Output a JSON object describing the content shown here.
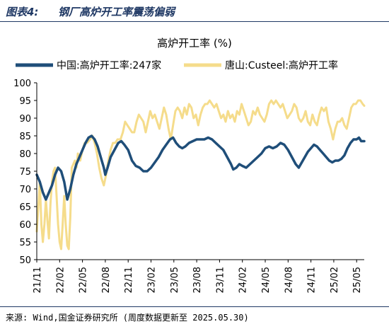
{
  "header": {
    "label": "图表4:",
    "title": "钢厂高炉开工率震荡偏弱"
  },
  "footer": {
    "source": "来源: Wind,国金证券研究所 (周度数据更新至 2025.05.30)"
  },
  "chart_data": {
    "type": "line",
    "title": "高炉开工率 (%)",
    "xlabel": "",
    "ylabel": "",
    "ylim": [
      50,
      100
    ],
    "yticks": [
      50,
      55,
      60,
      65,
      70,
      75,
      80,
      85,
      90,
      95,
      100
    ],
    "xlim": [
      0,
      43
    ],
    "xticks": [
      {
        "label": "21/11",
        "x": 0
      },
      {
        "label": "22/02",
        "x": 3
      },
      {
        "label": "22/05",
        "x": 6
      },
      {
        "label": "22/08",
        "x": 9
      },
      {
        "label": "22/11",
        "x": 12
      },
      {
        "label": "23/02",
        "x": 15
      },
      {
        "label": "23/05",
        "x": 18
      },
      {
        "label": "23/08",
        "x": 21
      },
      {
        "label": "23/11",
        "x": 24
      },
      {
        "label": "24/02",
        "x": 27
      },
      {
        "label": "24/05",
        "x": 30
      },
      {
        "label": "24/08",
        "x": 33
      },
      {
        "label": "24/11",
        "x": 36
      },
      {
        "label": "25/02",
        "x": 39
      },
      {
        "label": "25/05",
        "x": 42
      }
    ],
    "grid": false,
    "legend": "top",
    "series": [
      {
        "name": "中国:高炉开工率:247家",
        "color": "#1f4e79",
        "points": [
          [
            0,
            74
          ],
          [
            0.4,
            72
          ],
          [
            0.8,
            69
          ],
          [
            1.2,
            67
          ],
          [
            1.6,
            69
          ],
          [
            2.0,
            71
          ],
          [
            2.4,
            74
          ],
          [
            2.8,
            76
          ],
          [
            3.2,
            75
          ],
          [
            3.6,
            72
          ],
          [
            4.0,
            67
          ],
          [
            4.4,
            70
          ],
          [
            4.8,
            74
          ],
          [
            5.2,
            77
          ],
          [
            5.6,
            79
          ],
          [
            6.0,
            81
          ],
          [
            6.4,
            83
          ],
          [
            6.8,
            84.5
          ],
          [
            7.2,
            85
          ],
          [
            7.6,
            84
          ],
          [
            8.0,
            82
          ],
          [
            8.4,
            79
          ],
          [
            8.8,
            76
          ],
          [
            9.0,
            74
          ],
          [
            9.3,
            76
          ],
          [
            9.7,
            79
          ],
          [
            10.2,
            81
          ],
          [
            10.7,
            83
          ],
          [
            11.1,
            83.5
          ],
          [
            11.5,
            82.5
          ],
          [
            12.0,
            81
          ],
          [
            12.5,
            78
          ],
          [
            13.0,
            76.5
          ],
          [
            13.5,
            76
          ],
          [
            14.0,
            75
          ],
          [
            14.5,
            75
          ],
          [
            15.0,
            76
          ],
          [
            15.5,
            77.5
          ],
          [
            16.0,
            79
          ],
          [
            16.5,
            81
          ],
          [
            17.0,
            82.5
          ],
          [
            17.5,
            84
          ],
          [
            17.9,
            84.5
          ],
          [
            18.3,
            83
          ],
          [
            18.7,
            82
          ],
          [
            19.1,
            81.5
          ],
          [
            19.5,
            82
          ],
          [
            20.0,
            83
          ],
          [
            20.5,
            83.5
          ],
          [
            21.0,
            84
          ],
          [
            21.5,
            84
          ],
          [
            22.0,
            84
          ],
          [
            22.5,
            84.5
          ],
          [
            23.0,
            84
          ],
          [
            23.5,
            83
          ],
          [
            24.0,
            82
          ],
          [
            24.5,
            81
          ],
          [
            25.0,
            79
          ],
          [
            25.5,
            77
          ],
          [
            25.8,
            75.5
          ],
          [
            26.2,
            76
          ],
          [
            26.6,
            77
          ],
          [
            27.0,
            76.5
          ],
          [
            27.5,
            76
          ],
          [
            28.0,
            77
          ],
          [
            28.5,
            78
          ],
          [
            29.0,
            79
          ],
          [
            29.5,
            80
          ],
          [
            30.0,
            81.5
          ],
          [
            30.5,
            82
          ],
          [
            31.0,
            81.5
          ],
          [
            31.5,
            82
          ],
          [
            32.0,
            83
          ],
          [
            32.5,
            82.5
          ],
          [
            33.0,
            81
          ],
          [
            33.5,
            79
          ],
          [
            34.0,
            77
          ],
          [
            34.4,
            76
          ],
          [
            34.8,
            77.5
          ],
          [
            35.2,
            79
          ],
          [
            35.6,
            80.5
          ],
          [
            36.0,
            81.5
          ],
          [
            36.4,
            82.5
          ],
          [
            36.8,
            82
          ],
          [
            37.2,
            81
          ],
          [
            37.6,
            80
          ],
          [
            38.0,
            79
          ],
          [
            38.4,
            78
          ],
          [
            38.8,
            77.5
          ],
          [
            39.2,
            78
          ],
          [
            39.6,
            78
          ],
          [
            40.0,
            78.5
          ],
          [
            40.4,
            79.5
          ],
          [
            40.8,
            81.5
          ],
          [
            41.2,
            83
          ],
          [
            41.6,
            84
          ],
          [
            42.0,
            84
          ],
          [
            42.3,
            84.5
          ],
          [
            42.6,
            83.5
          ],
          [
            43.0,
            83.5
          ]
        ]
      },
      {
        "name": "唐山:Custeel:高炉开工率",
        "color": "#f5dc8b",
        "points": [
          [
            0,
            58
          ],
          [
            0.2,
            65
          ],
          [
            0.4,
            72
          ],
          [
            0.6,
            60
          ],
          [
            0.8,
            55
          ],
          [
            1.0,
            60
          ],
          [
            1.2,
            67
          ],
          [
            1.4,
            61
          ],
          [
            1.6,
            56
          ],
          [
            1.8,
            66
          ],
          [
            2.0,
            72
          ],
          [
            2.2,
            75
          ],
          [
            2.4,
            76
          ],
          [
            2.6,
            68
          ],
          [
            2.8,
            60
          ],
          [
            3.0,
            55
          ],
          [
            3.2,
            53
          ],
          [
            3.4,
            60
          ],
          [
            3.6,
            68
          ],
          [
            3.8,
            60
          ],
          [
            4.0,
            54
          ],
          [
            4.2,
            53
          ],
          [
            4.4,
            62
          ],
          [
            4.6,
            76
          ],
          [
            4.8,
            77
          ],
          [
            5.0,
            78
          ],
          [
            5.2,
            76
          ],
          [
            5.4,
            80
          ],
          [
            5.7,
            78
          ],
          [
            6.0,
            81
          ],
          [
            6.3,
            83
          ],
          [
            6.6,
            83
          ],
          [
            7.0,
            84
          ],
          [
            7.3,
            85
          ],
          [
            7.6,
            83
          ],
          [
            7.9,
            80
          ],
          [
            8.2,
            76
          ],
          [
            8.5,
            73
          ],
          [
            8.8,
            71
          ],
          [
            9.1,
            74
          ],
          [
            9.4,
            78
          ],
          [
            9.7,
            81
          ],
          [
            10.0,
            83
          ],
          [
            10.3,
            83
          ],
          [
            10.6,
            84
          ],
          [
            11.0,
            84
          ],
          [
            11.3,
            86
          ],
          [
            11.6,
            89
          ],
          [
            11.9,
            88
          ],
          [
            12.2,
            87
          ],
          [
            12.5,
            86
          ],
          [
            12.8,
            86
          ],
          [
            13.1,
            89
          ],
          [
            13.4,
            91
          ],
          [
            13.7,
            90
          ],
          [
            14.0,
            89
          ],
          [
            14.3,
            86
          ],
          [
            14.6,
            89
          ],
          [
            14.9,
            92
          ],
          [
            15.2,
            90
          ],
          [
            15.5,
            91
          ],
          [
            15.8,
            89
          ],
          [
            16.1,
            87
          ],
          [
            16.4,
            90
          ],
          [
            16.7,
            93
          ],
          [
            17.0,
            91
          ],
          [
            17.3,
            87
          ],
          [
            17.6,
            84
          ],
          [
            17.9,
            88
          ],
          [
            18.2,
            92
          ],
          [
            18.5,
            93
          ],
          [
            18.8,
            92
          ],
          [
            19.1,
            90
          ],
          [
            19.4,
            93
          ],
          [
            19.7,
            91
          ],
          [
            20.0,
            94
          ],
          [
            20.3,
            93
          ],
          [
            20.6,
            90
          ],
          [
            20.9,
            91
          ],
          [
            21.2,
            88
          ],
          [
            21.5,
            91
          ],
          [
            21.8,
            93
          ],
          [
            22.1,
            94
          ],
          [
            22.4,
            94
          ],
          [
            22.7,
            95
          ],
          [
            23.0,
            94
          ],
          [
            23.3,
            93
          ],
          [
            23.6,
            94
          ],
          [
            23.9,
            92
          ],
          [
            24.2,
            90
          ],
          [
            24.5,
            91
          ],
          [
            24.8,
            89
          ],
          [
            25.1,
            92
          ],
          [
            25.4,
            90
          ],
          [
            25.7,
            91
          ],
          [
            26.0,
            89
          ],
          [
            26.3,
            92
          ],
          [
            26.6,
            91
          ],
          [
            26.9,
            94
          ],
          [
            27.2,
            92
          ],
          [
            27.5,
            90
          ],
          [
            27.8,
            88
          ],
          [
            28.1,
            89
          ],
          [
            28.4,
            92
          ],
          [
            28.7,
            91
          ],
          [
            29.0,
            93
          ],
          [
            29.3,
            91
          ],
          [
            29.6,
            90
          ],
          [
            29.9,
            89
          ],
          [
            30.2,
            91
          ],
          [
            30.5,
            94
          ],
          [
            30.8,
            95
          ],
          [
            31.1,
            94
          ],
          [
            31.4,
            95
          ],
          [
            31.7,
            94
          ],
          [
            32.0,
            93
          ],
          [
            32.3,
            94
          ],
          [
            32.6,
            92
          ],
          [
            32.9,
            90
          ],
          [
            33.2,
            91
          ],
          [
            33.5,
            92
          ],
          [
            33.8,
            94
          ],
          [
            34.1,
            93
          ],
          [
            34.4,
            90
          ],
          [
            34.7,
            89
          ],
          [
            35.0,
            90
          ],
          [
            35.3,
            92
          ],
          [
            35.6,
            89
          ],
          [
            35.9,
            88
          ],
          [
            36.2,
            91
          ],
          [
            36.5,
            89
          ],
          [
            36.8,
            88
          ],
          [
            37.1,
            91
          ],
          [
            37.4,
            93
          ],
          [
            37.7,
            92
          ],
          [
            38.0,
            93
          ],
          [
            38.3,
            89
          ],
          [
            38.6,
            87
          ],
          [
            38.9,
            84
          ],
          [
            39.2,
            87
          ],
          [
            39.5,
            89
          ],
          [
            39.8,
            89
          ],
          [
            40.1,
            90
          ],
          [
            40.4,
            88
          ],
          [
            40.7,
            87
          ],
          [
            41.0,
            90
          ],
          [
            41.3,
            93
          ],
          [
            41.6,
            94
          ],
          [
            41.9,
            94
          ],
          [
            42.2,
            95
          ],
          [
            42.5,
            95
          ],
          [
            42.8,
            94
          ],
          [
            43.0,
            93.5
          ]
        ]
      }
    ]
  }
}
